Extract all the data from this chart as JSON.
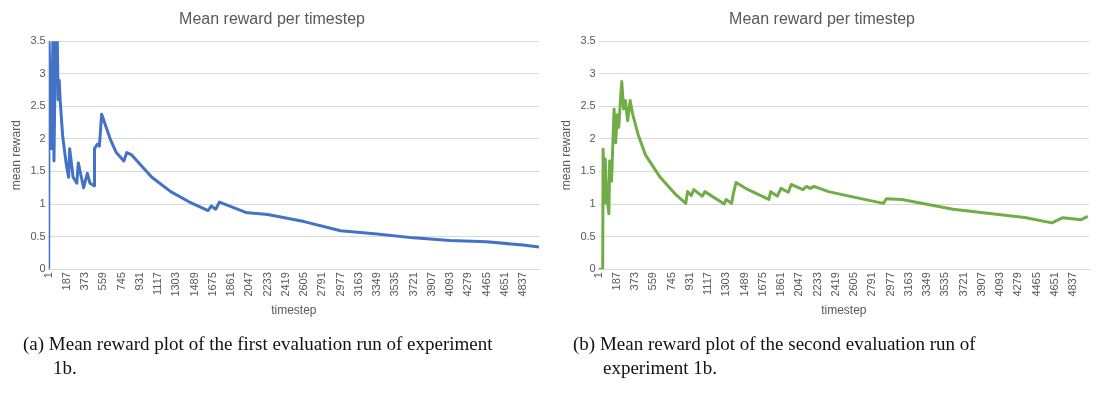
{
  "chart_data": [
    {
      "type": "line",
      "title": "Mean reward per timestep",
      "xlabel": "timestep",
      "ylabel": "mean reward",
      "xlim": [
        1,
        5000
      ],
      "xticks": [
        1,
        187,
        373,
        559,
        745,
        931,
        1117,
        1303,
        1489,
        1675,
        1861,
        2047,
        2233,
        2419,
        2605,
        2791,
        2977,
        3163,
        3349,
        3535,
        3721,
        3907,
        4093,
        4279,
        4465,
        4651,
        4837
      ],
      "ylim": [
        0,
        3.5
      ],
      "yticks": [
        0,
        0.5,
        1,
        1.5,
        2,
        2.5,
        3,
        3.5
      ],
      "grid": "y",
      "legend": false,
      "marker": "none",
      "line_style": "solid",
      "annotations": [
        "(a) Mean reward plot of the first evaluation run of experiment 1b."
      ],
      "series": [
        {
          "color": "#4472c4",
          "x": [
            1,
            5,
            28,
            43,
            55,
            70,
            89,
            97,
            108,
            120,
            143,
            181,
            204,
            215,
            250,
            288,
            303,
            357,
            395,
            422,
            464,
            468,
            499,
            518,
            541,
            564,
            633,
            690,
            767,
            797,
            843,
            939,
            1053,
            1245,
            1436,
            1627,
            1658,
            1704,
            1742,
            2010,
            2233,
            2605,
            2977,
            3349,
            3721,
            4093,
            4465,
            4837,
            5000
          ],
          "values": [
            0,
            3.5,
            1.85,
            3.5,
            1.66,
            3.5,
            3.5,
            2.6,
            2.9,
            2.55,
            2.05,
            1.6,
            1.41,
            1.85,
            1.41,
            1.32,
            1.63,
            1.25,
            1.47,
            1.32,
            1.28,
            1.85,
            1.92,
            1.89,
            2.38,
            2.28,
            1.98,
            1.79,
            1.66,
            1.79,
            1.76,
            1.6,
            1.41,
            1.19,
            1.03,
            0.9,
            0.97,
            0.92,
            1.03,
            0.87,
            0.84,
            0.73,
            0.59,
            0.54,
            0.48,
            0.44,
            0.42,
            0.37,
            0.34
          ]
        }
      ]
    },
    {
      "type": "line",
      "title": "Mean reward per timestep",
      "xlabel": "timestep",
      "ylabel": "mean reward",
      "xlim": [
        1,
        5000
      ],
      "xticks": [
        1,
        187,
        373,
        559,
        745,
        931,
        1117,
        1303,
        1489,
        1675,
        1861,
        2047,
        2233,
        2419,
        2605,
        2791,
        2977,
        3163,
        3349,
        3535,
        3721,
        3907,
        4093,
        4279,
        4465,
        4651,
        4837
      ],
      "ylim": [
        0,
        3.5
      ],
      "yticks": [
        0,
        0.5,
        1,
        1.5,
        2,
        2.5,
        3,
        3.5
      ],
      "grid": "y",
      "legend": false,
      "marker": "none",
      "line_style": "solid",
      "annotations": [
        "(b) Mean reward plot of the second evaluation run of experiment 1b."
      ],
      "series": [
        {
          "color": "#70ad47",
          "x": [
            1,
            42,
            46,
            61,
            68,
            83,
            105,
            113,
            132,
            147,
            158,
            173,
            191,
            206,
            221,
            236,
            255,
            273,
            296,
            322,
            344,
            404,
            479,
            628,
            777,
            889,
            907,
            945,
            971,
            1057,
            1083,
            1281,
            1300,
            1356,
            1374,
            1401,
            1524,
            1736,
            1755,
            1822,
            1860,
            1934,
            1964,
            2083,
            2121,
            2158,
            2195,
            2344,
            2494,
            2904,
            2934,
            3091,
            3614,
            4360,
            4621,
            4733,
            4920,
            4987
          ],
          "values": [
            0,
            0,
            1.84,
            1.01,
            1.69,
            1.13,
            0.85,
            1.66,
            1.35,
            2.0,
            2.46,
            1.94,
            2.37,
            2.18,
            2.55,
            2.88,
            2.46,
            2.59,
            2.28,
            2.59,
            2.4,
            2.06,
            1.75,
            1.41,
            1.16,
            1.01,
            1.19,
            1.13,
            1.22,
            1.12,
            1.19,
            1.0,
            1.07,
            1.01,
            1.16,
            1.33,
            1.22,
            1.07,
            1.19,
            1.12,
            1.24,
            1.18,
            1.3,
            1.22,
            1.27,
            1.24,
            1.27,
            1.19,
            1.14,
            1.01,
            1.08,
            1.07,
            0.92,
            0.79,
            0.71,
            0.79,
            0.76,
            0.81
          ]
        }
      ]
    }
  ]
}
